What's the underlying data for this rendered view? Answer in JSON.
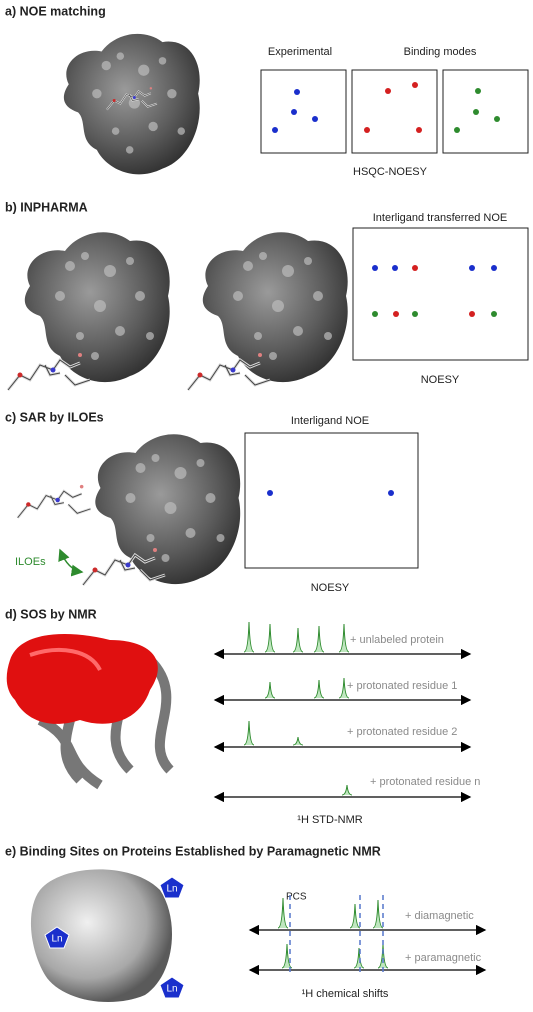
{
  "panels": [
    {
      "title": "a) NOE matching",
      "labels": [
        "Experimental",
        "Binding modes"
      ],
      "caption": "HSQC-NOESY"
    },
    {
      "title": "b) INPHARMA",
      "labels": [
        "Interligand transferred NOE"
      ],
      "caption": "NOESY"
    },
    {
      "title": "c) SAR by ILOEs",
      "labels": [
        "Interligand NOE",
        "ILOEs"
      ],
      "caption": "NOESY"
    },
    {
      "title": "d) SOS by NMR",
      "labels": [
        "+ unlabeled protein",
        "+ protonated residue 1",
        "+ protonated residue 2",
        "+ protonated residue n"
      ],
      "caption": "¹H STD-NMR"
    },
    {
      "title": "e) Binding Sites on Proteins Established by Paramagnetic NMR",
      "labels": [
        "PCS",
        "+ diamagnetic",
        "+ paramagnetic",
        "Ln",
        "Ln",
        "Ln"
      ],
      "caption": "¹H chemical shifts"
    }
  ]
}
